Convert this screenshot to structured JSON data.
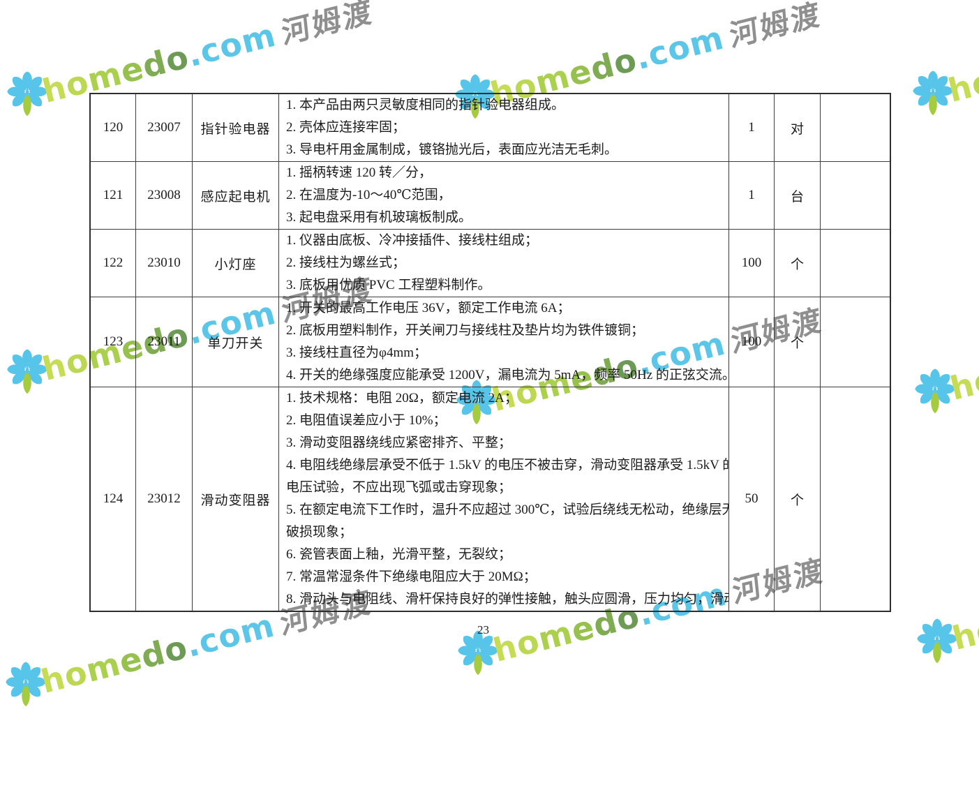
{
  "page": {
    "number": "23"
  },
  "watermark": {
    "brand_green": "homedo",
    "brand_blue": ".com",
    "brand_cjk": "河姆渡",
    "colors": {
      "petal_blue": "#56c5e9",
      "leaf_green": "#a5cb40",
      "green_letters": [
        "#c6dc55",
        "#bcd751",
        "#abd04e",
        "#96c14d",
        "#7fab53",
        "#6d9a55"
      ],
      "blue_text": "#5cc6e8",
      "gray_text": "#8f8f8f"
    }
  },
  "table": {
    "rows": [
      {
        "no": "120",
        "code": "23007",
        "name": "指针验电器",
        "specs": [
          "1. 本产品由两只灵敏度相同的指针验电器组成。",
          "2. 壳体应连接牢固；",
          "3. 导电杆用金属制成，镀铬抛光后，表面应光洁无毛刺。"
        ],
        "qty": "1",
        "unit": "对"
      },
      {
        "no": "121",
        "code": "23008",
        "name": "感应起电机",
        "specs": [
          "1. 摇柄转速 120 转／分，",
          "2. 在温度为-10～40℃范围，",
          "3. 起电盘采用有机玻璃板制成。"
        ],
        "qty": "1",
        "unit": "台"
      },
      {
        "no": "122",
        "code": "23010",
        "name": "小灯座",
        "specs": [
          "1. 仪器由底板、冷冲接插件、接线柱组成；",
          "2. 接线柱为螺丝式；",
          "3. 底板用优质 PVC 工程塑料制作。"
        ],
        "qty": "100",
        "unit": "个"
      },
      {
        "no": "123",
        "code": "23011",
        "name": "单刀开关",
        "specs": [
          "1. 开关的最高工作电压 36V，额定工作电流 6A；",
          "2. 底板用塑料制作，开关闸刀与接线柱及垫片均为铁件镀铜；",
          "3. 接线柱直径为φ4mm；",
          "4. 开关的绝缘强度应能承受 1200V，漏电流为 5mA，频率 50Hz 的正弦交流。"
        ],
        "qty": "100",
        "unit": "个"
      },
      {
        "no": "124",
        "code": "23012",
        "name": "滑动变阻器",
        "specs": [
          "1. 技术规格：电阻 20Ω，额定电流 2A；",
          "2. 电阻值误差应小于 10%；",
          "3. 滑动变阻器绕线应紧密排齐、平整；",
          "4. 电阻线绝缘层承受不低于 1.5kV 的电压不被击穿，滑动变阻器承受 1.5kV 的",
          "电压试验，不应出现飞弧或击穿现象；",
          "5. 在额定电流下工作时，温升不应超过 300℃，试验后绕线无松动，绝缘层无",
          "破损现象；",
          "6. 瓷管表面上釉，光滑平整，无裂纹；",
          "7. 常温常湿条件下绝缘电阻应大于 20MΩ；",
          "8. 滑动头与电阻线、滑杆保持良好的弹性接触，触头应圆滑，压力均匀，滑动"
        ],
        "qty": "50",
        "unit": "个"
      }
    ]
  }
}
